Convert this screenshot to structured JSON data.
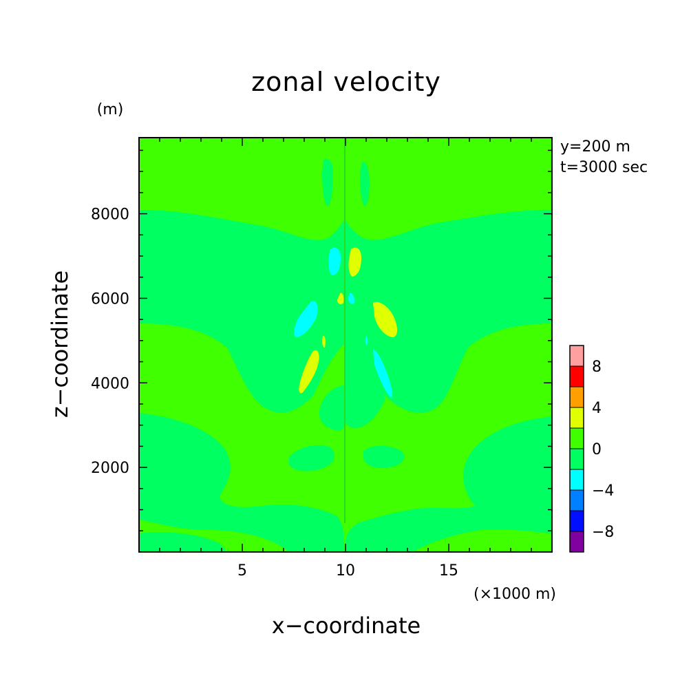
{
  "chart_data": {
    "type": "heatmap",
    "title": "zonal velocity",
    "xlabel": "x−coordinate",
    "ylabel": "z−coordinate",
    "x_unit": "(×1000 m)",
    "y_unit": "(m)",
    "xlim": [
      0,
      20
    ],
    "ylim": [
      0,
      9800
    ],
    "x_ticks": [
      5,
      10,
      15
    ],
    "y_ticks": [
      2000,
      4000,
      6000,
      8000
    ],
    "x_tick_labels": [
      "5",
      "10",
      "15"
    ],
    "y_tick_labels": [
      "2000",
      "4000",
      "6000",
      "8000"
    ],
    "annotations": [
      "y=200 m",
      "t=3000 sec"
    ],
    "grid": false,
    "colorbar": {
      "levels": [
        -10,
        -8,
        -6,
        -4,
        -2,
        0,
        2,
        4,
        6,
        8,
        10
      ],
      "colors": [
        "#8000a0",
        "#0010ff",
        "#0080ff",
        "#00ffff",
        "#00ff60",
        "#40ff00",
        "#e0ff00",
        "#ffa000",
        "#ff0000",
        "#ffa0a0"
      ],
      "tick_values": [
        -8,
        -4,
        0,
        4,
        8
      ],
      "tick_labels": [
        "−8",
        "−4",
        "0",
        "4",
        "8"
      ]
    }
  }
}
